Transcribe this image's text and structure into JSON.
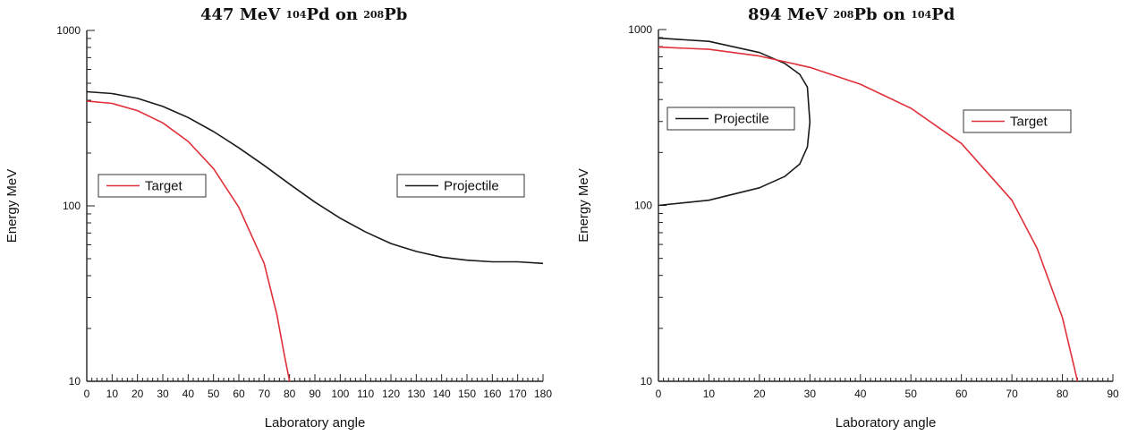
{
  "chart_data": [
    {
      "type": "line",
      "title": {
        "energy": "447 MeV",
        "beam_mass": "104",
        "beam_el": "Pd",
        "on": "on",
        "target_mass": "208",
        "target_el": "Pb"
      },
      "xlabel": "Laboratory angle",
      "ylabel": "Energy MeV",
      "xlim": [
        0,
        180
      ],
      "ylim": [
        10,
        1000
      ],
      "yscale": "log",
      "xticks_major": [
        "0",
        "10",
        "20",
        "30",
        "40",
        "50",
        "60",
        "70",
        "80",
        "90",
        "100",
        "110",
        "120",
        "130",
        "140",
        "150",
        "160",
        "170",
        "180"
      ],
      "yticks_major": [
        "10",
        "100",
        "1000"
      ],
      "legend_placement": [
        "middle-left",
        "middle-right"
      ],
      "series": [
        {
          "name": "Projectile",
          "color": "#1a1a1a",
          "x": [
            0,
            10,
            20,
            30,
            40,
            50,
            60,
            70,
            80,
            90,
            100,
            110,
            120,
            130,
            140,
            150,
            160,
            170,
            180
          ],
          "y": [
            447,
            437,
            410,
            369,
            319,
            265,
            214,
            170,
            133,
            105,
            85,
            71,
            61,
            55,
            51,
            49,
            48,
            48,
            47
          ]
        },
        {
          "name": "Target",
          "color": "#e0303a",
          "x": [
            0,
            10,
            20,
            30,
            40,
            50,
            60,
            70,
            75,
            78,
            80
          ],
          "y": [
            396,
            384,
            349,
            297,
            233,
            163,
            98,
            47,
            24,
            14,
            10
          ]
        }
      ]
    },
    {
      "type": "line",
      "title": {
        "energy": "894 MeV",
        "beam_mass": "208",
        "beam_el": "Pb",
        "on": "on",
        "target_mass": "104",
        "target_el": "Pd"
      },
      "xlabel": "Laboratory angle",
      "ylabel": "Energy MeV",
      "xlim": [
        0,
        90
      ],
      "ylim": [
        10,
        1000
      ],
      "yscale": "log",
      "xticks_major": [
        "0",
        "10",
        "20",
        "30",
        "40",
        "50",
        "60",
        "70",
        "80",
        "90"
      ],
      "yticks_major": [
        "10",
        "100",
        "1000"
      ],
      "legend_placement": [
        "upper-left",
        "upper-right"
      ],
      "series": [
        {
          "name": "Projectile",
          "color": "#1a1a1a",
          "x": [
            0,
            10,
            20,
            25,
            28,
            29.5,
            30,
            29.5,
            28,
            25,
            20,
            10,
            0
          ],
          "y": [
            894,
            857,
            740,
            642,
            556,
            470,
            298,
            215,
            172,
            146,
            126,
            107,
            100
          ]
        },
        {
          "name": "Target",
          "color": "#e0303a",
          "x": [
            0,
            10,
            20,
            30,
            40,
            50,
            60,
            70,
            75,
            80,
            83
          ],
          "y": [
            795,
            772,
            707,
            609,
            489,
            357,
            225,
            107,
            57,
            23,
            10
          ]
        }
      ]
    }
  ]
}
